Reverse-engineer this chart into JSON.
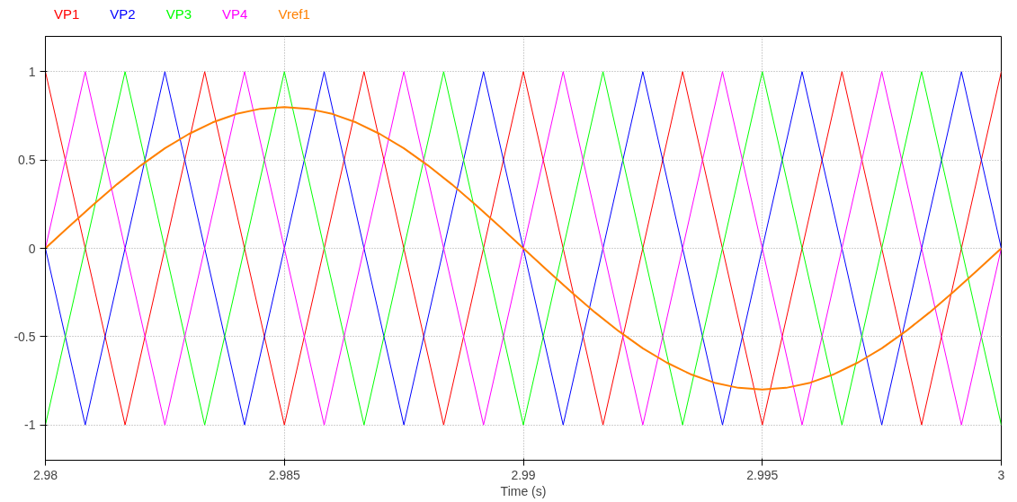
{
  "chart_data": {
    "type": "line",
    "xlabel": "Time (s)",
    "xlim": [
      2.98,
      3.0
    ],
    "ylim": [
      -1.2,
      1.2
    ],
    "xticks": [
      2.98,
      2.985,
      2.99,
      2.995,
      3
    ],
    "yticks": [
      -1,
      -0.5,
      0,
      0.5,
      1
    ],
    "grid": true,
    "legend": "top left",
    "marker": "none",
    "line_style": "solid",
    "series": [
      {
        "name": "VP1",
        "color": "#ff0000",
        "x": [
          2.98,
          2.981667,
          2.983333,
          2.985,
          2.986667,
          2.988333,
          2.99,
          2.991667,
          2.993333,
          2.995,
          2.996667,
          2.998333,
          3.0
        ],
        "values": [
          1,
          -1,
          1,
          -1,
          1,
          -1,
          1,
          -1,
          1,
          -1,
          1,
          -1,
          1
        ]
      },
      {
        "name": "VP2",
        "color": "#0000ff",
        "x": [
          2.98,
          2.980833,
          2.9825,
          2.984167,
          2.985833,
          2.9875,
          2.989167,
          2.990833,
          2.9925,
          2.994167,
          2.995833,
          2.9975,
          2.999167,
          3.0
        ],
        "values": [
          0,
          -1,
          1,
          -1,
          1,
          -1,
          1,
          -1,
          1,
          -1,
          1,
          -1,
          1,
          0
        ]
      },
      {
        "name": "VP3",
        "color": "#00ff00",
        "x": [
          2.98,
          2.981667,
          2.983333,
          2.985,
          2.986667,
          2.988333,
          2.99,
          2.991667,
          2.993333,
          2.995,
          2.996667,
          2.998333,
          3.0
        ],
        "values": [
          -1,
          1,
          -1,
          1,
          -1,
          1,
          -1,
          1,
          -1,
          1,
          -1,
          1,
          -1
        ]
      },
      {
        "name": "VP4",
        "color": "#ff00ff",
        "x": [
          2.98,
          2.980833,
          2.9825,
          2.984167,
          2.985833,
          2.9875,
          2.989167,
          2.990833,
          2.9925,
          2.994167,
          2.995833,
          2.9975,
          2.999167,
          3.0
        ],
        "values": [
          0,
          1,
          -1,
          1,
          -1,
          1,
          -1,
          1,
          -1,
          1,
          -1,
          1,
          -1,
          0
        ]
      },
      {
        "name": "Vref1",
        "color": "#ff8000",
        "x": [
          2.98,
          2.9805,
          2.981,
          2.9815,
          2.982,
          2.9825,
          2.983,
          2.9835,
          2.984,
          2.9845,
          2.985,
          2.9855,
          2.986,
          2.9865,
          2.987,
          2.9875,
          2.988,
          2.9885,
          2.989,
          2.9895,
          2.99,
          2.9905,
          2.991,
          2.9915,
          2.992,
          2.9925,
          2.993,
          2.9935,
          2.994,
          2.9945,
          2.995,
          2.9955,
          2.996,
          2.9965,
          2.997,
          2.9975,
          2.998,
          2.9985,
          2.999,
          2.9995,
          3.0
        ],
        "values": [
          0,
          0.125,
          0.247,
          0.363,
          0.47,
          0.566,
          0.647,
          0.713,
          0.761,
          0.79,
          0.8,
          0.79,
          0.761,
          0.713,
          0.647,
          0.566,
          0.47,
          0.363,
          0.247,
          0.125,
          0,
          -0.125,
          -0.247,
          -0.363,
          -0.47,
          -0.566,
          -0.647,
          -0.713,
          -0.761,
          -0.79,
          -0.8,
          -0.79,
          -0.761,
          -0.713,
          -0.647,
          -0.566,
          -0.47,
          -0.363,
          -0.247,
          -0.125,
          0
        ]
      }
    ]
  }
}
